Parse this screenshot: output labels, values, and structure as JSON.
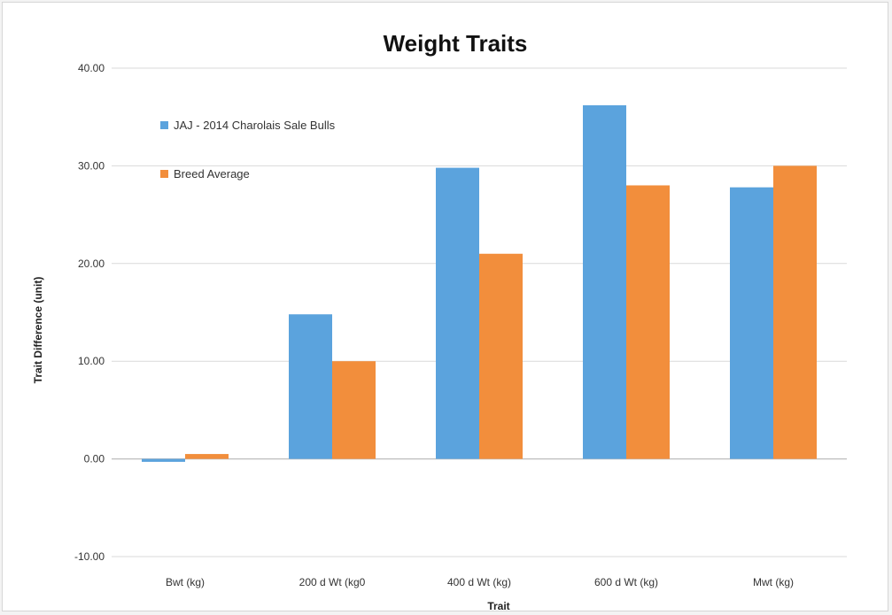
{
  "chart_data": {
    "type": "bar",
    "title": "Weight Traits",
    "xlabel": "Trait",
    "ylabel": "Trait Difference (unit)",
    "ylim": [
      -10,
      40
    ],
    "yticks": [
      -10,
      0,
      10,
      20,
      30,
      40
    ],
    "ytick_labels": [
      "-10.00",
      "0.00",
      "10.00",
      "20.00",
      "30.00",
      "40.00"
    ],
    "grid": true,
    "legend_position": "top-left",
    "categories": [
      "Bwt (kg)",
      "200 d Wt (kg0",
      "400 d Wt (kg)",
      "600 d Wt (kg)",
      "Mwt (kg)"
    ],
    "series": [
      {
        "name": "JAJ - 2014 Charolais Sale Bulls",
        "color": "#5ba3dd",
        "values": [
          -0.3,
          14.8,
          29.8,
          36.2,
          27.8
        ]
      },
      {
        "name": "Breed Average",
        "color": "#f28e3c",
        "values": [
          0.5,
          10.0,
          21.0,
          28.0,
          30.0
        ]
      }
    ]
  }
}
